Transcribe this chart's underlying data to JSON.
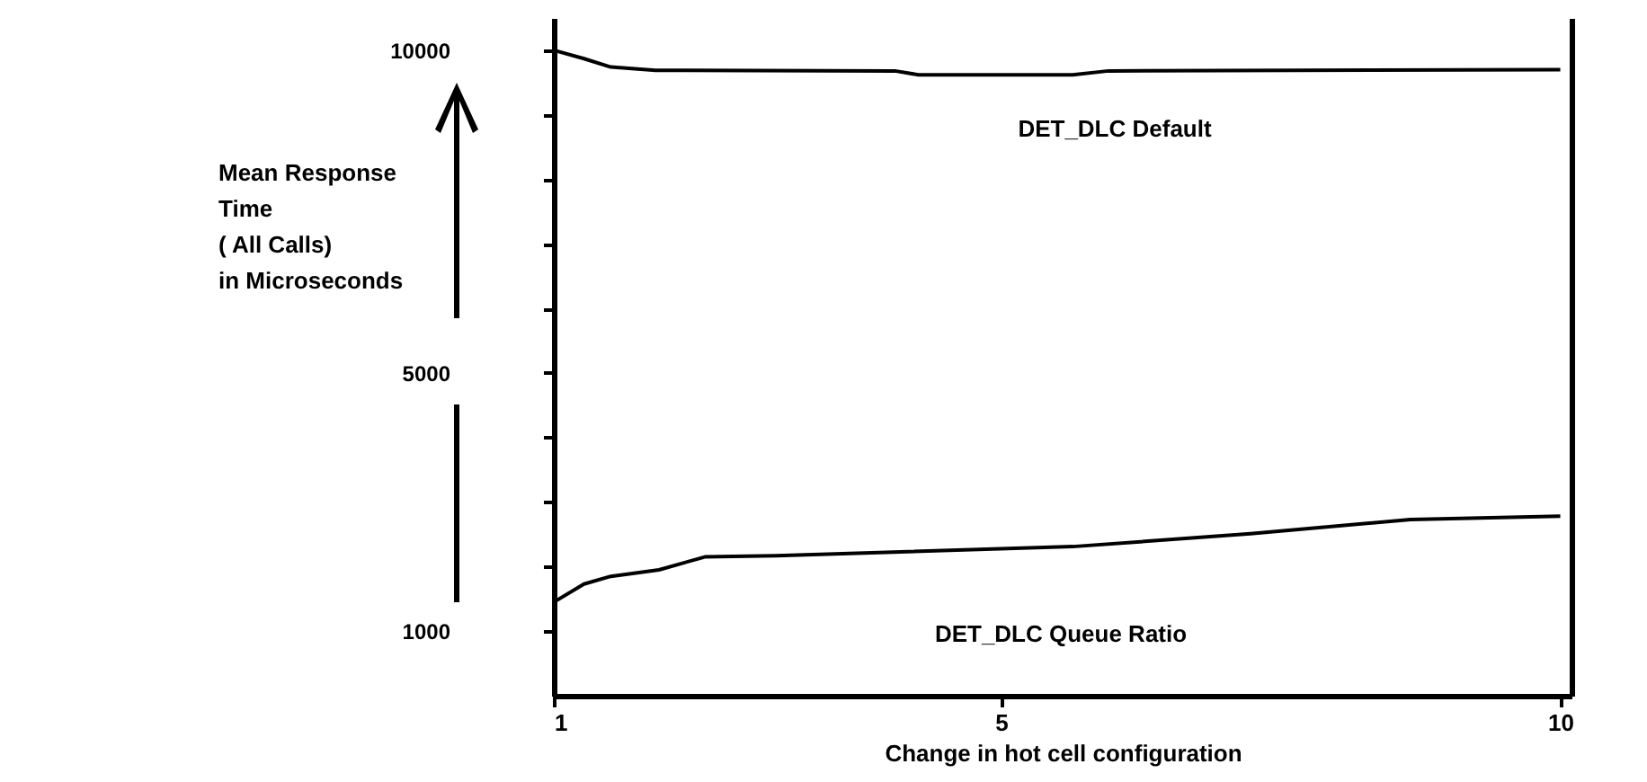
{
  "chart_data": {
    "type": "line",
    "xlabel": "Change in hot cell configuration",
    "ylabel": "Mean Response\nTime\n( All Calls)\n\nin Microseconds",
    "xlim": [
      1,
      10.1
    ],
    "xticks": [
      1,
      5,
      10
    ],
    "ylim": [
      0,
      10500
    ],
    "yticks": [
      {
        "value": 1000,
        "label": "1000"
      },
      {
        "value": 2000,
        "label": null
      },
      {
        "value": 3000,
        "label": null
      },
      {
        "value": 4000,
        "label": null
      },
      {
        "value": 5000,
        "label": "5000"
      },
      {
        "value": 6000,
        "label": null
      },
      {
        "value": 7000,
        "label": null
      },
      {
        "value": 8000,
        "label": null
      },
      {
        "value": 9000,
        "label": null
      },
      {
        "value": 10000,
        "label": "10000"
      }
    ],
    "grid": false,
    "marker": "none",
    "line_style": "solid",
    "series": [
      {
        "name": "DET_DLC Default",
        "color": "#000000",
        "x": [
          1,
          1.27,
          1.51,
          1.91,
          4.05,
          4.26,
          5.64,
          5.96,
          10
        ],
        "values": [
          10000,
          9870,
          9740,
          9690,
          9680,
          9620,
          9620,
          9680,
          9700
        ]
      },
      {
        "name": "DET_DLC Queue Ratio",
        "color": "#000000",
        "x": [
          1,
          1.27,
          1.51,
          1.94,
          2.35,
          2.99,
          5.64,
          7.23,
          8.66,
          10
        ],
        "values": [
          1450,
          1730,
          1850,
          1950,
          2150,
          2170,
          2310,
          2510,
          2730,
          2780
        ]
      }
    ]
  }
}
